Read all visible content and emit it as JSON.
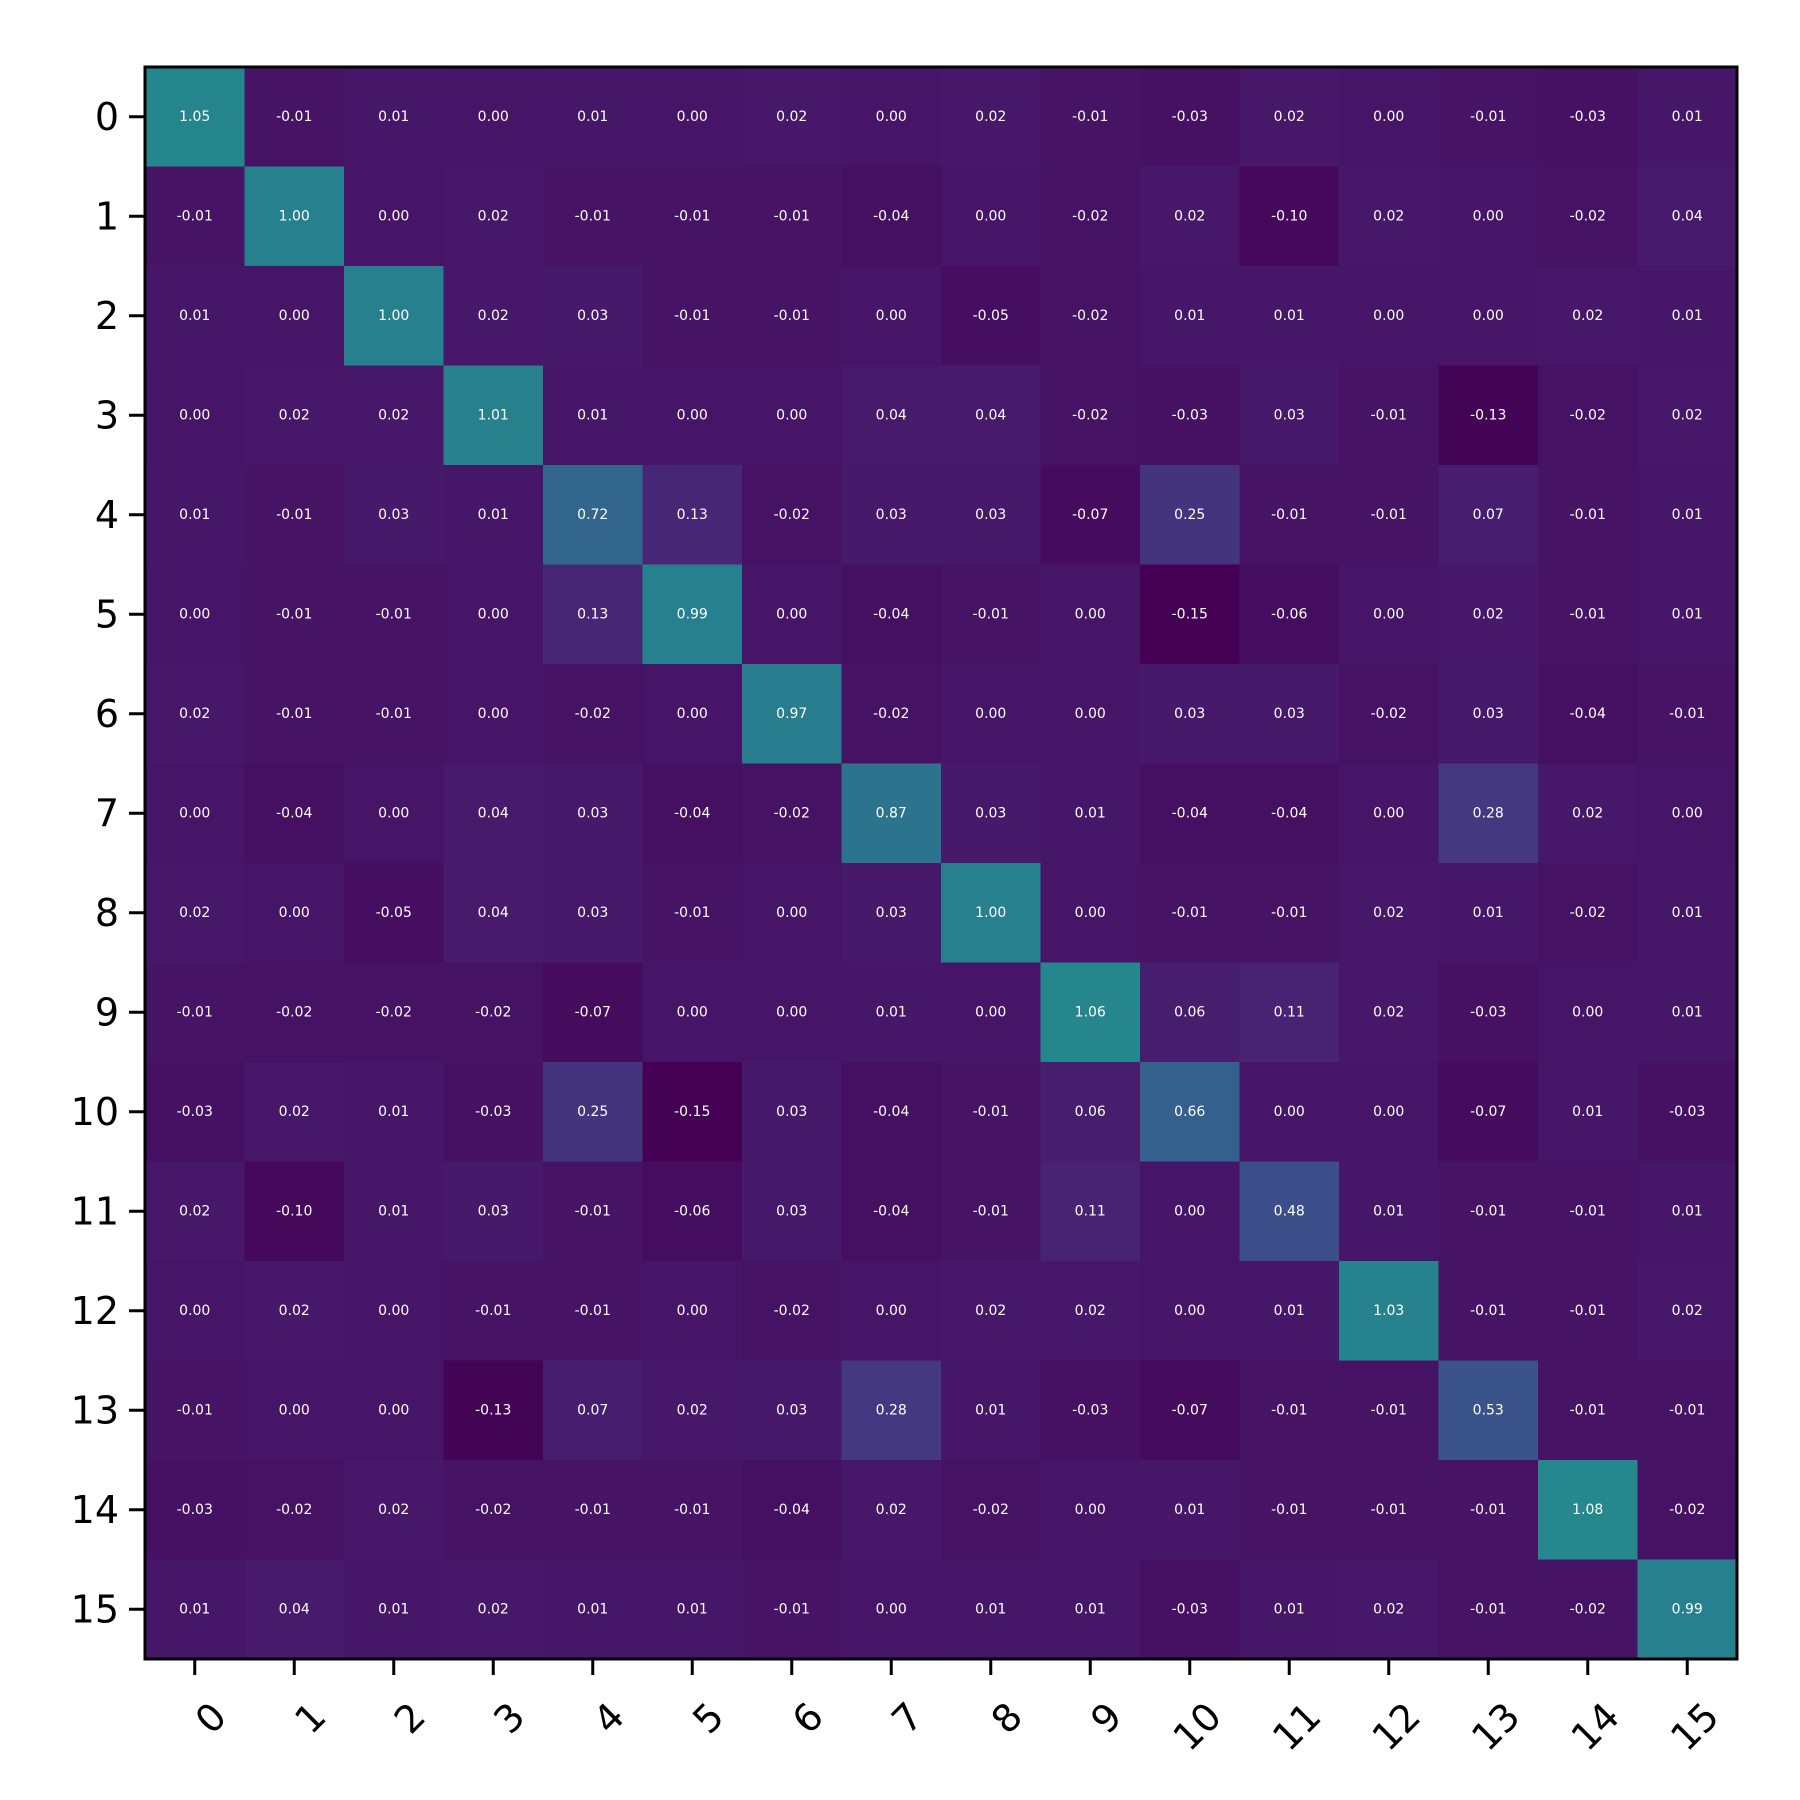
{
  "chart_data": {
    "type": "heatmap",
    "title": "",
    "xlabel": "",
    "ylabel": "",
    "x_labels": [
      "0",
      "1",
      "2",
      "3",
      "4",
      "5",
      "6",
      "7",
      "8",
      "9",
      "10",
      "11",
      "12",
      "13",
      "14",
      "15"
    ],
    "y_labels": [
      "0",
      "1",
      "2",
      "3",
      "4",
      "5",
      "6",
      "7",
      "8",
      "9",
      "10",
      "11",
      "12",
      "13",
      "14",
      "15"
    ],
    "colormap": "viridis",
    "color_range": [
      -0.15,
      2.5
    ],
    "grid": false,
    "value_format": "2 decimals",
    "values": [
      [
        1.05,
        -0.01,
        0.01,
        -0.0,
        0.01,
        -0.0,
        0.02,
        -0.0,
        0.02,
        -0.01,
        -0.03,
        0.02,
        -0.0,
        -0.01,
        -0.03,
        0.01
      ],
      [
        -0.01,
        1.0,
        0.0,
        0.02,
        -0.01,
        -0.01,
        -0.01,
        -0.04,
        -0.0,
        -0.02,
        0.02,
        -0.1,
        0.02,
        -0.0,
        -0.02,
        0.04
      ],
      [
        0.01,
        0.0,
        1.0,
        0.02,
        0.03,
        -0.01,
        -0.01,
        0.0,
        -0.05,
        -0.02,
        0.01,
        0.01,
        -0.0,
        0.0,
        0.02,
        0.01
      ],
      [
        -0.0,
        0.02,
        0.02,
        1.01,
        0.01,
        0.0,
        0.0,
        0.04,
        0.04,
        -0.02,
        -0.03,
        0.03,
        -0.01,
        -0.13,
        -0.02,
        0.02
      ],
      [
        0.01,
        -0.01,
        0.03,
        0.01,
        0.72,
        0.13,
        -0.02,
        0.03,
        0.03,
        -0.07,
        0.25,
        -0.01,
        -0.01,
        0.07,
        -0.01,
        0.01
      ],
      [
        -0.0,
        -0.01,
        -0.01,
        0.0,
        0.13,
        0.99,
        -0.0,
        -0.04,
        -0.01,
        -0.0,
        -0.15,
        -0.06,
        0.0,
        0.02,
        -0.01,
        0.01
      ],
      [
        0.02,
        -0.01,
        -0.01,
        0.0,
        -0.02,
        -0.0,
        0.97,
        -0.02,
        -0.0,
        0.0,
        0.03,
        0.03,
        -0.02,
        0.03,
        -0.04,
        -0.01
      ],
      [
        -0.0,
        -0.04,
        0.0,
        0.04,
        0.03,
        -0.04,
        -0.02,
        0.87,
        0.03,
        0.01,
        -0.04,
        -0.04,
        -0.0,
        0.28,
        0.02,
        0.0
      ],
      [
        0.02,
        -0.0,
        -0.05,
        0.04,
        0.03,
        -0.01,
        -0.0,
        0.03,
        1.0,
        -0.0,
        -0.01,
        -0.01,
        0.02,
        0.01,
        -0.02,
        0.01
      ],
      [
        -0.01,
        -0.02,
        -0.02,
        -0.02,
        -0.07,
        -0.0,
        0.0,
        0.01,
        -0.0,
        1.06,
        0.06,
        0.11,
        0.02,
        -0.03,
        0.0,
        0.01
      ],
      [
        -0.03,
        0.02,
        0.01,
        -0.03,
        0.25,
        -0.15,
        0.03,
        -0.04,
        -0.01,
        0.06,
        0.66,
        -0.0,
        0.0,
        -0.07,
        0.01,
        -0.03
      ],
      [
        0.02,
        -0.1,
        0.01,
        0.03,
        -0.01,
        -0.06,
        0.03,
        -0.04,
        -0.01,
        0.11,
        -0.0,
        0.48,
        0.01,
        -0.01,
        -0.01,
        0.01
      ],
      [
        -0.0,
        0.02,
        -0.0,
        -0.01,
        -0.01,
        0.0,
        -0.02,
        -0.0,
        0.02,
        0.02,
        0.0,
        0.01,
        1.03,
        -0.01,
        -0.01,
        0.02
      ],
      [
        -0.01,
        -0.0,
        0.0,
        -0.13,
        0.07,
        0.02,
        0.03,
        0.28,
        0.01,
        -0.03,
        -0.07,
        -0.01,
        -0.01,
        0.53,
        -0.01,
        -0.01
      ],
      [
        -0.03,
        -0.02,
        0.02,
        -0.02,
        -0.01,
        -0.01,
        -0.04,
        0.02,
        -0.02,
        0.0,
        0.01,
        -0.01,
        -0.01,
        -0.01,
        1.08,
        -0.02
      ],
      [
        0.01,
        0.04,
        0.01,
        0.02,
        0.01,
        0.01,
        -0.01,
        0.0,
        0.01,
        0.01,
        -0.03,
        0.01,
        0.02,
        -0.01,
        -0.02,
        0.99
      ]
    ]
  }
}
